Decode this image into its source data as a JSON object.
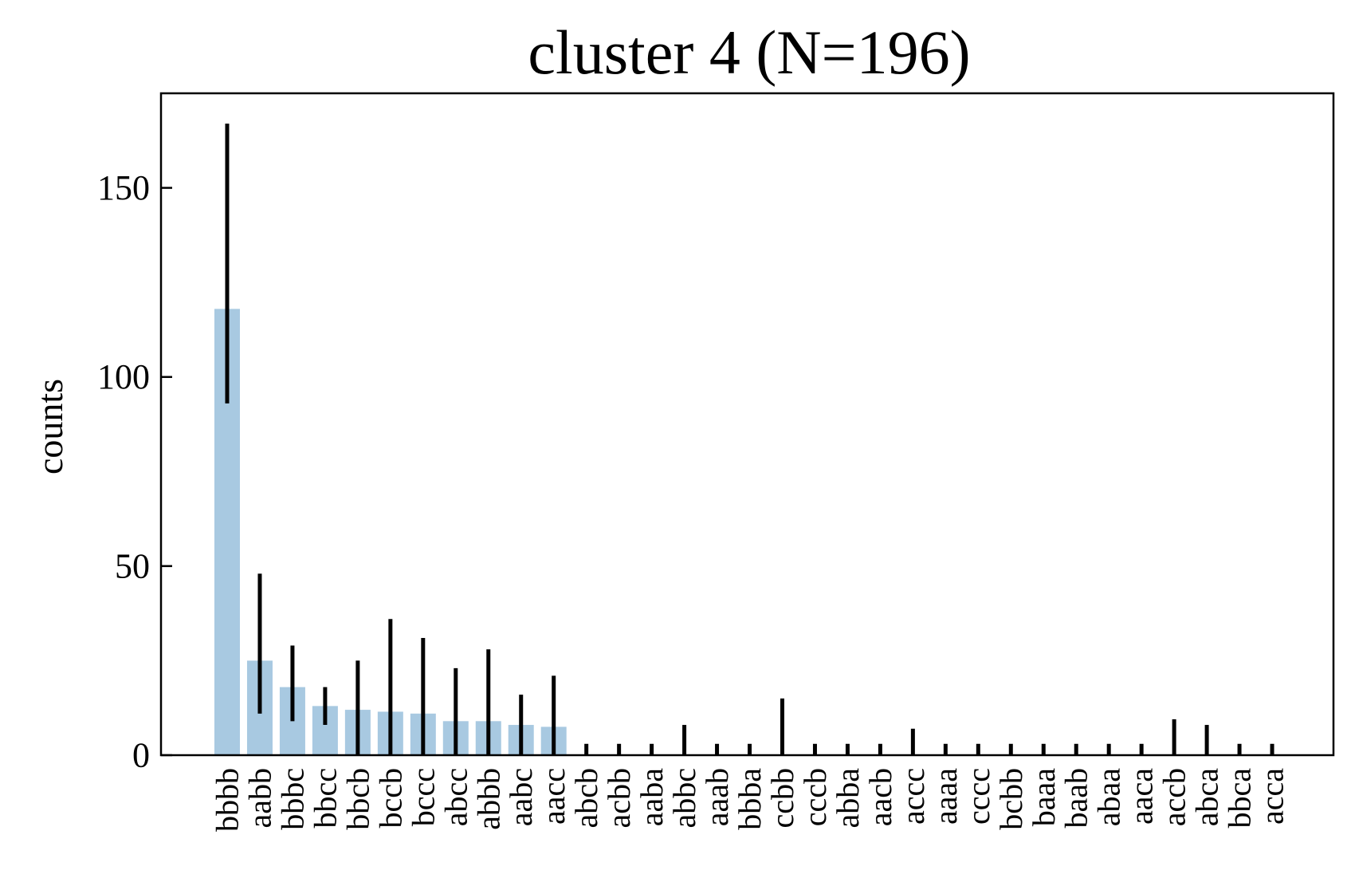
{
  "chart_data": {
    "type": "bar",
    "title": "cluster 4 (N=196)",
    "xlabel": "",
    "ylabel": "counts",
    "ylim": [
      0,
      175
    ],
    "yticks": [
      0,
      50,
      100,
      150
    ],
    "grid": false,
    "legend": "none",
    "bar_color": "#a8c9e1",
    "error_color": "#000000",
    "categories": [
      "bbbb",
      "aabb",
      "bbbc",
      "bbcc",
      "bbcb",
      "bccb",
      "bccc",
      "abcc",
      "abbb",
      "aabc",
      "aacc",
      "abcb",
      "acbb",
      "aaba",
      "abbc",
      "aaab",
      "bbba",
      "ccbb",
      "cccb",
      "abba",
      "aacb",
      "accc",
      "aaaa",
      "cccc",
      "bcbb",
      "baaa",
      "baab",
      "abaa",
      "aaca",
      "accb",
      "abca",
      "bbca",
      "acca"
    ],
    "series": [
      {
        "values": [
          118,
          25,
          18,
          13,
          12,
          11.5,
          11,
          9,
          9,
          8,
          7.5,
          0,
          0,
          0,
          0,
          0,
          0,
          0,
          0,
          0,
          0,
          0,
          0,
          0,
          0,
          0,
          0,
          0,
          0,
          0,
          0,
          0,
          0
        ],
        "error_low": [
          93,
          11,
          9,
          8,
          0,
          0,
          0,
          0,
          0,
          0,
          0,
          0,
          0,
          0,
          0,
          0,
          0,
          0,
          0,
          0,
          0,
          0,
          0,
          0,
          0,
          0,
          0,
          0,
          0,
          0,
          0,
          0,
          0
        ],
        "error_high": [
          167,
          48,
          29,
          18,
          25,
          36,
          31,
          23,
          28,
          16,
          21,
          3,
          3,
          3,
          8,
          3,
          3,
          15,
          3,
          3,
          3,
          7,
          3,
          3,
          3,
          3,
          3,
          3,
          3,
          9.5,
          8,
          3,
          3
        ]
      }
    ]
  }
}
